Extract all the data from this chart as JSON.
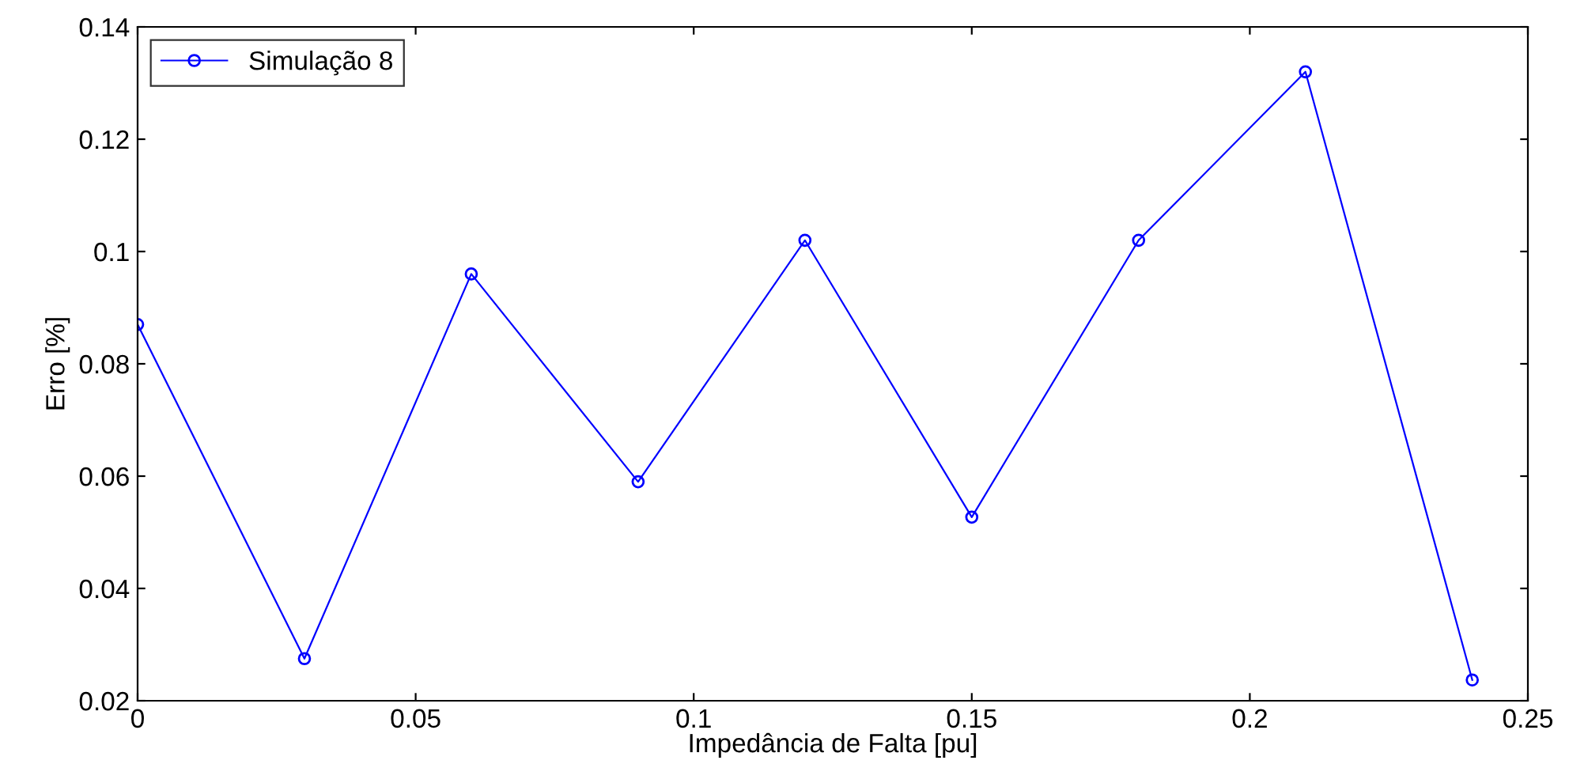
{
  "chart_data": {
    "type": "line",
    "xlabel": "Impedância de Falta [pu]",
    "ylabel": "Erro [%]",
    "x": [
      0,
      0.03,
      0.06,
      0.09,
      0.12,
      0.15,
      0.18,
      0.21,
      0.24
    ],
    "series": [
      {
        "name": "Simulação 8",
        "color": "#0000ff",
        "values": [
          0.087,
          0.0275,
          0.096,
          0.059,
          0.102,
          0.0527,
          0.102,
          0.132,
          0.0237
        ]
      }
    ],
    "xlim": [
      0,
      0.25
    ],
    "xticks": [
      0,
      0.05,
      0.1,
      0.15,
      0.2,
      0.25
    ],
    "ylim": [
      0.02,
      0.14
    ],
    "yticks": [
      0.02,
      0.04,
      0.06,
      0.08,
      0.1,
      0.12,
      0.14
    ],
    "grid": false,
    "legend": "top left",
    "marker": "circle",
    "line_style": "solid"
  }
}
